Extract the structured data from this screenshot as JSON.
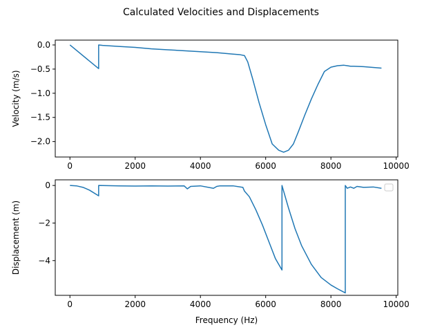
{
  "figure": {
    "title": "Calculated Velocities and Displacements",
    "line_color": "#1f77b4"
  },
  "chart_data": [
    {
      "type": "line",
      "title": "",
      "xlabel": "",
      "ylabel": "Velocity (m/s)",
      "xlim": [
        -450,
        10050
      ],
      "ylim": [
        -2.32,
        0.1
      ],
      "xticks": [
        0,
        2000,
        4000,
        6000,
        8000,
        10000
      ],
      "xtick_labels": [
        "0",
        "2000",
        "4000",
        "6000",
        "8000",
        "10000"
      ],
      "yticks": [
        0.0,
        -0.5,
        -1.0,
        -1.5,
        -2.0
      ],
      "ytick_labels": [
        "0.0",
        "−0.5",
        "−1.0",
        "−1.5",
        "−2.0"
      ],
      "grid": false,
      "series": [
        {
          "x": [
            0,
            880,
            880,
            1000,
            1500,
            2000,
            2500,
            3000,
            3500,
            4000,
            4500,
            5000,
            5200,
            5350,
            5450,
            5600,
            5800,
            6000,
            6200,
            6400,
            6550,
            6700,
            6850,
            7000,
            7200,
            7400,
            7600,
            7800,
            8000,
            8200,
            8400,
            8500,
            8600,
            8700,
            9000,
            9550
          ],
          "y": [
            0.0,
            -0.49,
            0.0,
            -0.01,
            -0.03,
            -0.05,
            -0.08,
            -0.1,
            -0.12,
            -0.14,
            -0.16,
            -0.19,
            -0.2,
            -0.22,
            -0.35,
            -0.7,
            -1.2,
            -1.65,
            -2.05,
            -2.18,
            -2.22,
            -2.18,
            -2.05,
            -1.8,
            -1.45,
            -1.12,
            -0.82,
            -0.55,
            -0.46,
            -0.43,
            -0.42,
            -0.43,
            -0.44,
            -0.44,
            -0.45,
            -0.48
          ]
        }
      ]
    },
    {
      "type": "line",
      "title": "",
      "xlabel": "Frequency (Hz)",
      "ylabel": "Displacement (m)",
      "xlim": [
        -450,
        10050
      ],
      "ylim": [
        -5.85,
        0.3
      ],
      "xticks": [
        0,
        2000,
        4000,
        6000,
        8000,
        10000
      ],
      "xtick_labels": [
        "0",
        "2000",
        "4000",
        "6000",
        "8000",
        "10000"
      ],
      "yticks": [
        0,
        -2,
        -4
      ],
      "ytick_labels": [
        "0",
        "−2",
        "−4"
      ],
      "grid": false,
      "legend": "upper right",
      "series": [
        {
          "x": [
            0,
            200,
            400,
            600,
            880,
            880,
            1500,
            2000,
            2500,
            3000,
            3500,
            3600,
            3700,
            4000,
            4400,
            4500,
            4600,
            5000,
            5300,
            5350,
            5500,
            5700,
            5900,
            6100,
            6300,
            6500,
            6500,
            6700,
            6900,
            7100,
            7400,
            7700,
            8000,
            8200,
            8440,
            8440,
            8500,
            8600,
            8700,
            8800,
            9000,
            9300,
            9550
          ],
          "y": [
            0.0,
            -0.02,
            -0.1,
            -0.25,
            -0.55,
            0.0,
            -0.02,
            -0.03,
            -0.02,
            -0.03,
            -0.02,
            -0.18,
            -0.05,
            -0.02,
            -0.15,
            -0.05,
            -0.02,
            -0.02,
            -0.1,
            -0.3,
            -0.6,
            -1.3,
            -2.1,
            -3.0,
            -3.9,
            -4.5,
            0.0,
            -1.2,
            -2.3,
            -3.2,
            -4.2,
            -4.9,
            -5.3,
            -5.5,
            -5.72,
            0.0,
            -0.15,
            -0.08,
            -0.15,
            -0.05,
            -0.1,
            -0.08,
            -0.15
          ]
        }
      ]
    }
  ]
}
